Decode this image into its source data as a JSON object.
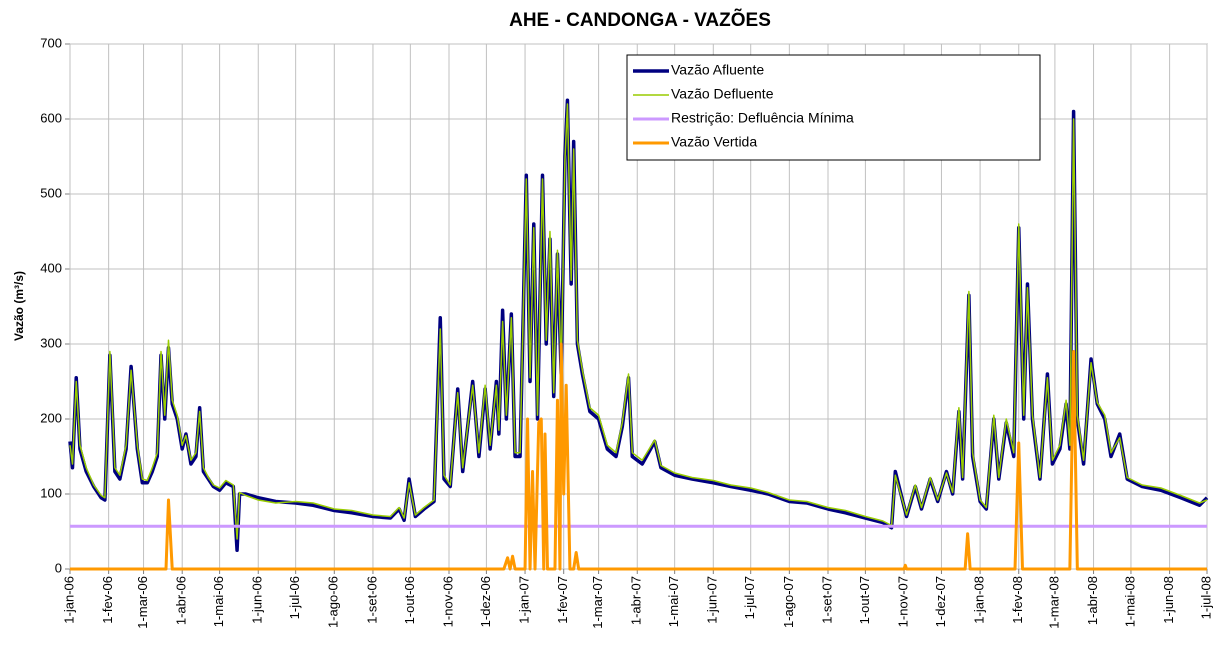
{
  "chart_data": {
    "type": "line",
    "title": "AHE - CANDONGA - VAZÕES",
    "y_label": "Vazão (m³/s)",
    "x": [
      "2006-01-01",
      "2006-01-03",
      "2006-01-06",
      "2006-01-09",
      "2006-01-14",
      "2006-01-20",
      "2006-01-26",
      "2006-01-29",
      "2006-02-02",
      "2006-02-06",
      "2006-02-10",
      "2006-02-15",
      "2006-02-19",
      "2006-02-24",
      "2006-02-28",
      "2006-03-04",
      "2006-03-08",
      "2006-03-12",
      "2006-03-15",
      "2006-03-18",
      "2006-03-21",
      "2006-03-24",
      "2006-03-28",
      "2006-04-01",
      "2006-04-04",
      "2006-04-08",
      "2006-04-12",
      "2006-04-15",
      "2006-04-18",
      "2006-04-22",
      "2006-04-26",
      "2006-05-01",
      "2006-05-06",
      "2006-05-12",
      "2006-05-15",
      "2006-05-17",
      "2006-05-22",
      "2006-06-01",
      "2006-06-15",
      "2006-07-01",
      "2006-07-15",
      "2006-08-01",
      "2006-08-15",
      "2006-09-01",
      "2006-09-15",
      "2006-09-22",
      "2006-09-26",
      "2006-09-30",
      "2006-10-05",
      "2006-10-12",
      "2006-10-20",
      "2006-10-25",
      "2006-10-28",
      "2006-11-02",
      "2006-11-08",
      "2006-11-12",
      "2006-11-20",
      "2006-11-25",
      "2006-11-30",
      "2006-12-04",
      "2006-12-09",
      "2006-12-11",
      "2006-12-14",
      "2006-12-17",
      "2006-12-21",
      "2006-12-24",
      "2006-12-28",
      "2007-01-02",
      "2007-01-05",
      "2007-01-08",
      "2007-01-11",
      "2007-01-15",
      "2007-01-18",
      "2007-01-21",
      "2007-01-24",
      "2007-01-27",
      "2007-01-30",
      "2007-02-02",
      "2007-02-04",
      "2007-02-07",
      "2007-02-09",
      "2007-02-12",
      "2007-02-16",
      "2007-02-22",
      "2007-03-01",
      "2007-03-08",
      "2007-03-15",
      "2007-03-20",
      "2007-03-25",
      "2007-03-28",
      "2007-04-05",
      "2007-04-15",
      "2007-04-20",
      "2007-05-01",
      "2007-05-15",
      "2007-06-01",
      "2007-06-15",
      "2007-07-01",
      "2007-07-15",
      "2007-08-01",
      "2007-08-15",
      "2007-09-01",
      "2007-09-15",
      "2007-10-01",
      "2007-10-15",
      "2007-10-22",
      "2007-10-25",
      "2007-11-03",
      "2007-11-10",
      "2007-11-15",
      "2007-11-22",
      "2007-11-28",
      "2007-12-05",
      "2007-12-10",
      "2007-12-15",
      "2007-12-18",
      "2007-12-23",
      "2007-12-26",
      "2008-01-01",
      "2008-01-06",
      "2008-01-12",
      "2008-01-16",
      "2008-01-22",
      "2008-01-28",
      "2008-02-01",
      "2008-02-05",
      "2008-02-08",
      "2008-02-12",
      "2008-02-18",
      "2008-02-24",
      "2008-02-28",
      "2008-03-05",
      "2008-03-10",
      "2008-03-13",
      "2008-03-16",
      "2008-03-19",
      "2008-03-24",
      "2008-03-30",
      "2008-04-04",
      "2008-04-10",
      "2008-04-15",
      "2008-04-22",
      "2008-04-28",
      "2008-05-10",
      "2008-05-25",
      "2008-06-10",
      "2008-06-25",
      "2008-07-01"
    ],
    "series": [
      {
        "name": "Vazão Afluente",
        "color": "#000080",
        "width": 3.5,
        "values": [
          170,
          135,
          255,
          160,
          130,
          110,
          95,
          92,
          285,
          130,
          120,
          160,
          270,
          160,
          115,
          115,
          130,
          150,
          285,
          200,
          295,
          220,
          200,
          160,
          180,
          140,
          150,
          215,
          130,
          120,
          110,
          105,
          115,
          110,
          25,
          100,
          100,
          95,
          90,
          88,
          85,
          78,
          75,
          70,
          68,
          80,
          65,
          120,
          70,
          80,
          90,
          335,
          120,
          110,
          240,
          130,
          250,
          150,
          240,
          160,
          250,
          180,
          345,
          200,
          340,
          150,
          150,
          525,
          250,
          460,
          200,
          525,
          300,
          440,
          230,
          420,
          260,
          550,
          625,
          380,
          570,
          300,
          260,
          210,
          200,
          160,
          150,
          190,
          255,
          150,
          140,
          170,
          135,
          125,
          120,
          115,
          110,
          105,
          100,
          90,
          88,
          80,
          75,
          68,
          62,
          55,
          130,
          70,
          110,
          80,
          120,
          90,
          130,
          100,
          210,
          120,
          365,
          150,
          90,
          80,
          200,
          120,
          195,
          150,
          455,
          200,
          380,
          200,
          120,
          260,
          140,
          160,
          220,
          160,
          610,
          200,
          140,
          280,
          220,
          200,
          150,
          180,
          120,
          110,
          105,
          95,
          85,
          95
        ]
      },
      {
        "name": "Vazão Defluente",
        "color": "#99cc00",
        "width": 1.5,
        "values": [
          165,
          140,
          250,
          165,
          135,
          112,
          98,
          95,
          290,
          135,
          125,
          165,
          265,
          165,
          120,
          118,
          135,
          155,
          290,
          205,
          305,
          225,
          205,
          165,
          178,
          145,
          155,
          210,
          135,
          122,
          112,
          108,
          118,
          112,
          40,
          102,
          98,
          92,
          88,
          90,
          88,
          80,
          78,
          72,
          70,
          82,
          68,
          115,
          72,
          82,
          92,
          320,
          125,
          112,
          235,
          135,
          245,
          155,
          245,
          165,
          245,
          185,
          330,
          205,
          335,
          155,
          155,
          520,
          255,
          455,
          205,
          520,
          305,
          450,
          235,
          425,
          265,
          545,
          620,
          385,
          560,
          305,
          265,
          215,
          205,
          165,
          155,
          195,
          260,
          155,
          145,
          172,
          138,
          128,
          122,
          118,
          112,
          108,
          102,
          92,
          90,
          82,
          78,
          70,
          64,
          58,
          125,
          72,
          112,
          82,
          122,
          92,
          128,
          102,
          215,
          122,
          370,
          155,
          92,
          82,
          205,
          122,
          200,
          155,
          460,
          205,
          375,
          205,
          122,
          255,
          145,
          165,
          225,
          165,
          600,
          205,
          145,
          275,
          222,
          205,
          155,
          175,
          122,
          112,
          108,
          98,
          88,
          92
        ]
      },
      {
        "name": "Restrição: Defluência Mínima",
        "color": "#cc99ff",
        "width": 3,
        "x": [
          "2006-01-01",
          "2008-07-01"
        ],
        "values": [
          57,
          57
        ]
      },
      {
        "name": "Vazão Vertida",
        "color": "#ff9900",
        "width": 3,
        "x": [
          "2006-01-01",
          "2006-03-19",
          "2006-03-21",
          "2006-03-24",
          "2006-12-15",
          "2006-12-18",
          "2006-12-20",
          "2006-12-22",
          "2006-12-24",
          "2007-01-01",
          "2007-01-03",
          "2007-01-05",
          "2007-01-07",
          "2007-01-09",
          "2007-01-12",
          "2007-01-14",
          "2007-01-16",
          "2007-01-17",
          "2007-01-19",
          "2007-01-25",
          "2007-01-27",
          "2007-01-29",
          "2007-01-30",
          "2007-02-01",
          "2007-02-03",
          "2007-02-06",
          "2007-02-09",
          "2007-02-11",
          "2007-02-13",
          "2007-11-01",
          "2007-11-02",
          "2007-11-03",
          "2007-12-20",
          "2007-12-22",
          "2007-12-24",
          "2008-01-29",
          "2008-02-01",
          "2008-02-04",
          "2008-03-13",
          "2008-03-16",
          "2008-03-19",
          "2008-07-01"
        ],
        "values": [
          0,
          0,
          92,
          0,
          0,
          15,
          0,
          17,
          0,
          0,
          200,
          0,
          130,
          0,
          195,
          200,
          0,
          180,
          0,
          0,
          225,
          0,
          300,
          100,
          245,
          0,
          0,
          22,
          0,
          0,
          5,
          0,
          0,
          47,
          0,
          0,
          168,
          0,
          0,
          290,
          0,
          0
        ]
      }
    ],
    "xlim": [
      "2006-01-01",
      "2008-07-01"
    ],
    "xticks": [
      {
        "value": "2006-01-01",
        "label": "1-jan-06"
      },
      {
        "value": "2006-02-01",
        "label": "1-fev-06"
      },
      {
        "value": "2006-03-01",
        "label": "1-mar-06"
      },
      {
        "value": "2006-04-01",
        "label": "1-abr-06"
      },
      {
        "value": "2006-05-01",
        "label": "1-mai-06"
      },
      {
        "value": "2006-06-01",
        "label": "1-jun-06"
      },
      {
        "value": "2006-07-01",
        "label": "1-jul-06"
      },
      {
        "value": "2006-08-01",
        "label": "1-ago-06"
      },
      {
        "value": "2006-09-01",
        "label": "1-set-06"
      },
      {
        "value": "2006-10-01",
        "label": "1-out-06"
      },
      {
        "value": "2006-11-01",
        "label": "1-nov-06"
      },
      {
        "value": "2006-12-01",
        "label": "1-dez-06"
      },
      {
        "value": "2007-01-01",
        "label": "1-jan-07"
      },
      {
        "value": "2007-02-01",
        "label": "1-fev-07"
      },
      {
        "value": "2007-03-01",
        "label": "1-mar-07"
      },
      {
        "value": "2007-04-01",
        "label": "1-abr-07"
      },
      {
        "value": "2007-05-01",
        "label": "1-mai-07"
      },
      {
        "value": "2007-06-01",
        "label": "1-jun-07"
      },
      {
        "value": "2007-07-01",
        "label": "1-jul-07"
      },
      {
        "value": "2007-08-01",
        "label": "1-ago-07"
      },
      {
        "value": "2007-09-01",
        "label": "1-set-07"
      },
      {
        "value": "2007-10-01",
        "label": "1-out-07"
      },
      {
        "value": "2007-11-01",
        "label": "1-nov-07"
      },
      {
        "value": "2007-12-01",
        "label": "1-dez-07"
      },
      {
        "value": "2008-01-01",
        "label": "1-jan-08"
      },
      {
        "value": "2008-02-01",
        "label": "1-fev-08"
      },
      {
        "value": "2008-03-01",
        "label": "1-mar-08"
      },
      {
        "value": "2008-04-01",
        "label": "1-abr-08"
      },
      {
        "value": "2008-05-01",
        "label": "1-mai-08"
      },
      {
        "value": "2008-06-01",
        "label": "1-jun-08"
      },
      {
        "value": "2008-07-01",
        "label": "1-jul-08"
      }
    ],
    "ylim": [
      0,
      700
    ],
    "yticks": [
      0,
      100,
      200,
      300,
      400,
      500,
      600,
      700
    ],
    "grid": true,
    "legend": "top-right"
  }
}
